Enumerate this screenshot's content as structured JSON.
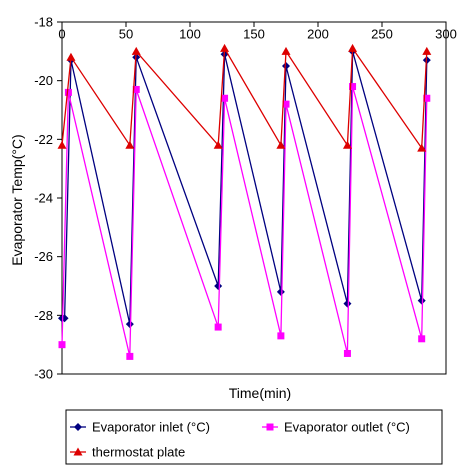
{
  "chart_data": {
    "type": "line",
    "title": "",
    "xlabel": "Time(min)",
    "ylabel": "Evaporator Temp(°C)",
    "xlim": [
      0,
      300
    ],
    "ylim": [
      -30,
      -18
    ],
    "x_ticks": [
      "0",
      "50",
      "100",
      "150",
      "200",
      "250",
      "300"
    ],
    "y_ticks": [
      "-18",
      "-20",
      "-22",
      "-24",
      "-26",
      "-28",
      "-30"
    ],
    "x_axis_position": "top",
    "grid": false,
    "legend_position": "bottom",
    "series": [
      {
        "name": "Evaporator inlet (°C)",
        "color": "#000080",
        "marker": "diamond",
        "x": [
          0,
          2,
          7,
          53,
          58,
          122,
          127,
          171,
          175,
          223,
          227,
          281,
          285
        ],
        "y": [
          -28.1,
          -28.1,
          -19.3,
          -28.3,
          -19.2,
          -27.0,
          -19.1,
          -27.2,
          -19.5,
          -27.6,
          -19.0,
          -27.5,
          -19.3
        ]
      },
      {
        "name": "Evaporator outlet (°C)",
        "color": "#ff00ff",
        "marker": "square",
        "x": [
          0,
          5,
          53,
          58,
          122,
          127,
          171,
          175,
          223,
          227,
          281,
          285
        ],
        "y": [
          -29.0,
          -20.4,
          -29.4,
          -20.3,
          -28.4,
          -20.6,
          -28.7,
          -20.8,
          -29.3,
          -20.2,
          -28.8,
          -20.6
        ]
      },
      {
        "name": "thermostat plate",
        "color": "#dd0000",
        "marker": "triangle",
        "x": [
          0,
          7,
          53,
          58,
          122,
          127,
          171,
          175,
          223,
          227,
          281,
          285
        ],
        "y": [
          -22.2,
          -19.2,
          -22.2,
          -19.0,
          -22.2,
          -18.9,
          -22.2,
          -19.0,
          -22.2,
          -18.9,
          -22.3,
          -19.0
        ]
      }
    ]
  }
}
